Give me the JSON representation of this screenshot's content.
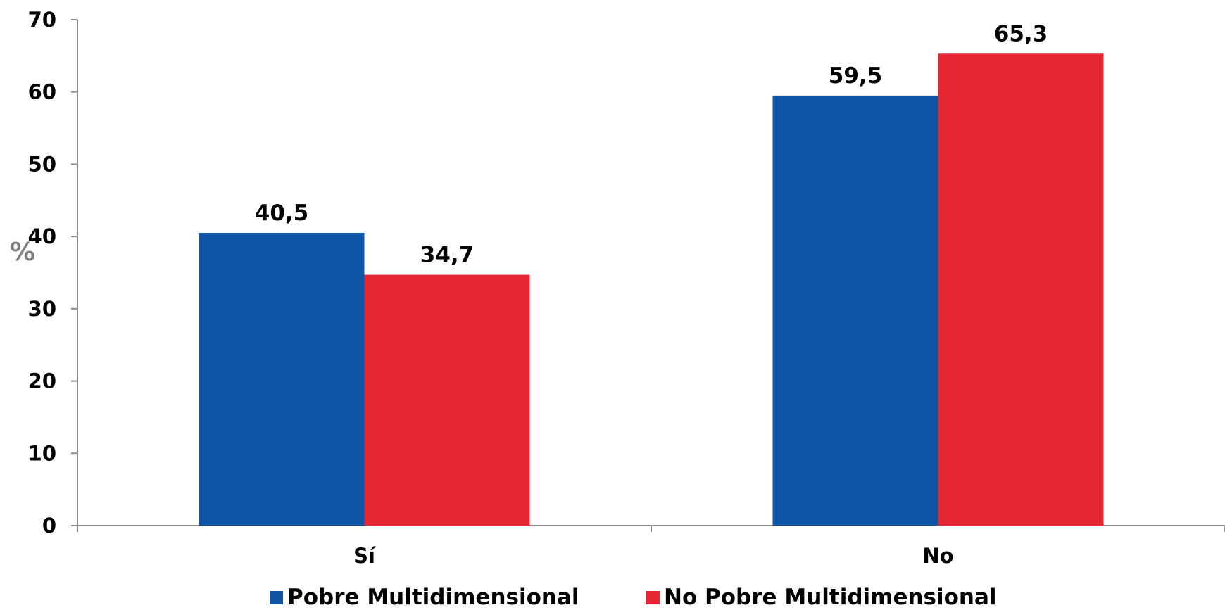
{
  "chart_data": {
    "type": "bar",
    "categories": [
      "Sí",
      "No"
    ],
    "series": [
      {
        "name": "Pobre Multidimensional",
        "values": [
          40.5,
          59.5
        ],
        "labels": [
          "40,5",
          "59,5"
        ],
        "color": "#1155a7"
      },
      {
        "name": "No Pobre Multidimensional",
        "values": [
          34.7,
          65.3
        ],
        "labels": [
          "34,7",
          "65,3"
        ],
        "color": "#e52834"
      }
    ],
    "title": "",
    "xlabel": "",
    "ylabel": "%",
    "ylim": [
      0,
      70
    ],
    "yticks": [
      0,
      10,
      20,
      30,
      40,
      50,
      60,
      70
    ],
    "grid": false,
    "legend_position": "bottom",
    "axis_color": "#8c8c8c",
    "ylabel_color": "#7f7f7f"
  }
}
